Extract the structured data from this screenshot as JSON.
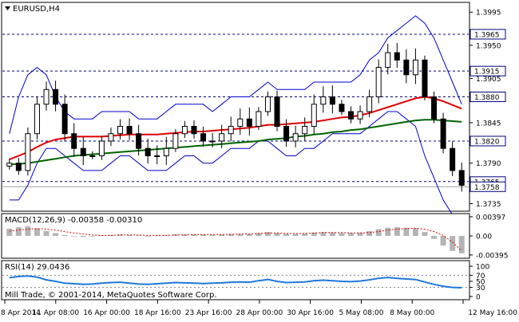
{
  "window": {
    "symbol_title": "EURUSD,H4",
    "copyright": "Mill Trade, © 2001-2014, MetaQuotes Software Corp."
  },
  "colors": {
    "frame": "#000000",
    "hline": "#000080",
    "candle": "#000000",
    "bollinger": "#0000cd",
    "ma_fast": "#e00000",
    "ma_slow": "#006400",
    "macd_hist": "#b4b4b4",
    "macd_signal": "#e00000",
    "rsi": "#1e78dc",
    "rsi_levels": "#808080",
    "current_price_line": "#a0a0a0",
    "label_bg": "#ffffff"
  },
  "price_pane": {
    "scale_labels": [
      "1.3995",
      "1.3950",
      "1.3905",
      "1.3845",
      "1.3790",
      "1.3735"
    ],
    "level_lines": [
      {
        "label": "1.3965",
        "value": 1.3965
      },
      {
        "label": "1.3915",
        "value": 1.3915
      },
      {
        "label": "1.3880",
        "value": 1.388
      },
      {
        "label": "1.3820",
        "value": 1.382
      },
      {
        "label": "1.3765",
        "value": 1.3765
      }
    ],
    "current_price": {
      "label": "1.3758",
      "value": 1.3758
    }
  },
  "macd_pane": {
    "title": "MACD(12,26,9) -0.00358 -0.00310",
    "scale_labels": [
      "0.00397",
      "0.00",
      "-0.00395"
    ]
  },
  "rsi_pane": {
    "title": "RSI(14) 29.0436",
    "scale_labels": [
      "100",
      "70",
      "50",
      "30",
      "0"
    ],
    "levels": [
      30,
      70
    ]
  },
  "time_axis": [
    "8 Apr 2014",
    "11 Apr 08:00",
    "16 Apr 00:00",
    "18 Apr 16:00",
    "23 Apr 16:00",
    "28 Apr 00:00",
    "30 Apr 16:00",
    "5 May 08:00",
    "8 May 00:00",
    "12 May 16:00"
  ],
  "chart_data": [
    {
      "type": "candlestick",
      "title": "EURUSD,H4",
      "ylim": [
        1.3728,
        1.4005
      ],
      "note_points": "approximate close path",
      "close_series": [
        1.379,
        1.378,
        1.383,
        1.387,
        1.389,
        1.387,
        1.383,
        1.381,
        1.38,
        1.38,
        1.382,
        1.383,
        1.384,
        1.383,
        1.381,
        1.38,
        1.38,
        1.381,
        1.383,
        1.384,
        1.383,
        1.382,
        1.382,
        1.383,
        1.384,
        1.385,
        1.384,
        1.386,
        1.388,
        1.384,
        1.382,
        1.383,
        1.384,
        1.387,
        1.388,
        1.387,
        1.386,
        1.385,
        1.386,
        1.388,
        1.392,
        1.394,
        1.393,
        1.391,
        1.393,
        1.388,
        1.385,
        1.381,
        1.378,
        1.376
      ],
      "overlays": [
        {
          "name": "bollinger_upper",
          "values": [
            1.383,
            1.388,
            1.391,
            1.392,
            1.391,
            1.388,
            1.386,
            1.385,
            1.385,
            1.385,
            1.386,
            1.386,
            1.386,
            1.386,
            1.385,
            1.385,
            1.385,
            1.386,
            1.387,
            1.387,
            1.387,
            1.387,
            1.386,
            1.387,
            1.388,
            1.388,
            1.388,
            1.389,
            1.39,
            1.389,
            1.389,
            1.389,
            1.389,
            1.39,
            1.39,
            1.39,
            1.39,
            1.39,
            1.391,
            1.393,
            1.394,
            1.396,
            1.397,
            1.398,
            1.399,
            1.398,
            1.396,
            1.393,
            1.39,
            1.387
          ]
        },
        {
          "name": "bollinger_lower",
          "values": [
            1.374,
            1.374,
            1.376,
            1.379,
            1.381,
            1.381,
            1.38,
            1.379,
            1.378,
            1.378,
            1.378,
            1.379,
            1.38,
            1.38,
            1.379,
            1.378,
            1.378,
            1.378,
            1.379,
            1.38,
            1.38,
            1.379,
            1.379,
            1.38,
            1.381,
            1.381,
            1.381,
            1.382,
            1.382,
            1.381,
            1.38,
            1.38,
            1.381,
            1.381,
            1.382,
            1.383,
            1.383,
            1.383,
            1.383,
            1.384,
            1.385,
            1.386,
            1.386,
            1.385,
            1.384,
            1.38,
            1.377,
            1.374,
            1.372,
            1.371
          ]
        },
        {
          "name": "ma_fast",
          "values": [
            1.3795,
            1.38,
            1.3805,
            1.3812,
            1.3818,
            1.3822,
            1.3824,
            1.3826,
            1.3826,
            1.3826,
            1.3826,
            1.3827,
            1.3828,
            1.3829,
            1.3829,
            1.3829,
            1.3829,
            1.383,
            1.3831,
            1.3832,
            1.3833,
            1.3833,
            1.3834,
            1.3835,
            1.3836,
            1.3837,
            1.3838,
            1.384,
            1.3842,
            1.3842,
            1.3843,
            1.3844,
            1.3845,
            1.3846,
            1.3848,
            1.385,
            1.3852,
            1.3853,
            1.3855,
            1.3858,
            1.3862,
            1.3866,
            1.387,
            1.3874,
            1.3878,
            1.388,
            1.3878,
            1.3874,
            1.3869,
            1.3864
          ]
        },
        {
          "name": "ma_slow",
          "values": [
            1.3788,
            1.3789,
            1.379,
            1.3792,
            1.3794,
            1.3796,
            1.3798,
            1.38,
            1.3801,
            1.3802,
            1.3803,
            1.3804,
            1.3805,
            1.3806,
            1.3807,
            1.3808,
            1.3809,
            1.381,
            1.3811,
            1.3812,
            1.3813,
            1.3814,
            1.3815,
            1.3816,
            1.3817,
            1.3818,
            1.3819,
            1.382,
            1.3822,
            1.3823,
            1.3824,
            1.3826,
            1.3827,
            1.3829,
            1.383,
            1.3832,
            1.3833,
            1.3835,
            1.3836,
            1.3838,
            1.384,
            1.3842,
            1.3844,
            1.3846,
            1.3848,
            1.3849,
            1.3849,
            1.3848,
            1.3847,
            1.3846
          ]
        }
      ]
    },
    {
      "type": "bar",
      "title": "MACD(12,26,9) -0.00358 -0.00310",
      "ylim": [
        -0.0043,
        0.0043
      ],
      "values": [
        0.0015,
        0.0018,
        0.002,
        0.0016,
        0.001,
        0.0006,
        0.0002,
        -0.0001,
        -0.0002,
        -0.0001,
        0.0001,
        0.0002,
        0.0003,
        0.0002,
        0.0001,
        0.0,
        0.0001,
        0.0002,
        0.0003,
        0.0003,
        0.0003,
        0.0003,
        0.0002,
        0.0003,
        0.0004,
        0.0004,
        0.0004,
        0.0006,
        0.0008,
        0.0006,
        0.0004,
        0.0004,
        0.0005,
        0.0007,
        0.0008,
        0.0007,
        0.0006,
        0.0006,
        0.0007,
        0.001,
        0.0014,
        0.0017,
        0.0018,
        0.0017,
        0.0016,
        0.0008,
        -0.0006,
        -0.002,
        -0.0031,
        -0.0036
      ],
      "signal": [
        0.001,
        0.0012,
        0.0014,
        0.0015,
        0.0014,
        0.0012,
        0.0009,
        0.0006,
        0.0004,
        0.0002,
        0.0001,
        0.0001,
        0.0002,
        0.0002,
        0.0002,
        0.0001,
        0.0001,
        0.0001,
        0.0002,
        0.0002,
        0.0003,
        0.0003,
        0.0003,
        0.0003,
        0.0003,
        0.0004,
        0.0004,
        0.0005,
        0.0006,
        0.0006,
        0.0005,
        0.0005,
        0.0005,
        0.0006,
        0.0007,
        0.0007,
        0.0007,
        0.0006,
        0.0006,
        0.0007,
        0.0009,
        0.0012,
        0.0014,
        0.0015,
        0.0016,
        0.0014,
        0.0009,
        0.0001,
        -0.0013,
        -0.0031
      ]
    },
    {
      "type": "line",
      "title": "RSI(14) 29.0436",
      "ylim": [
        0,
        100
      ],
      "values": [
        62,
        66,
        68,
        64,
        55,
        50,
        44,
        42,
        40,
        41,
        44,
        46,
        47,
        44,
        41,
        40,
        42,
        44,
        46,
        45,
        44,
        43,
        44,
        45,
        47,
        48,
        47,
        52,
        56,
        50,
        46,
        47,
        48,
        52,
        54,
        52,
        50,
        49,
        51,
        55,
        60,
        63,
        60,
        58,
        56,
        48,
        40,
        34,
        30,
        29
      ]
    }
  ]
}
